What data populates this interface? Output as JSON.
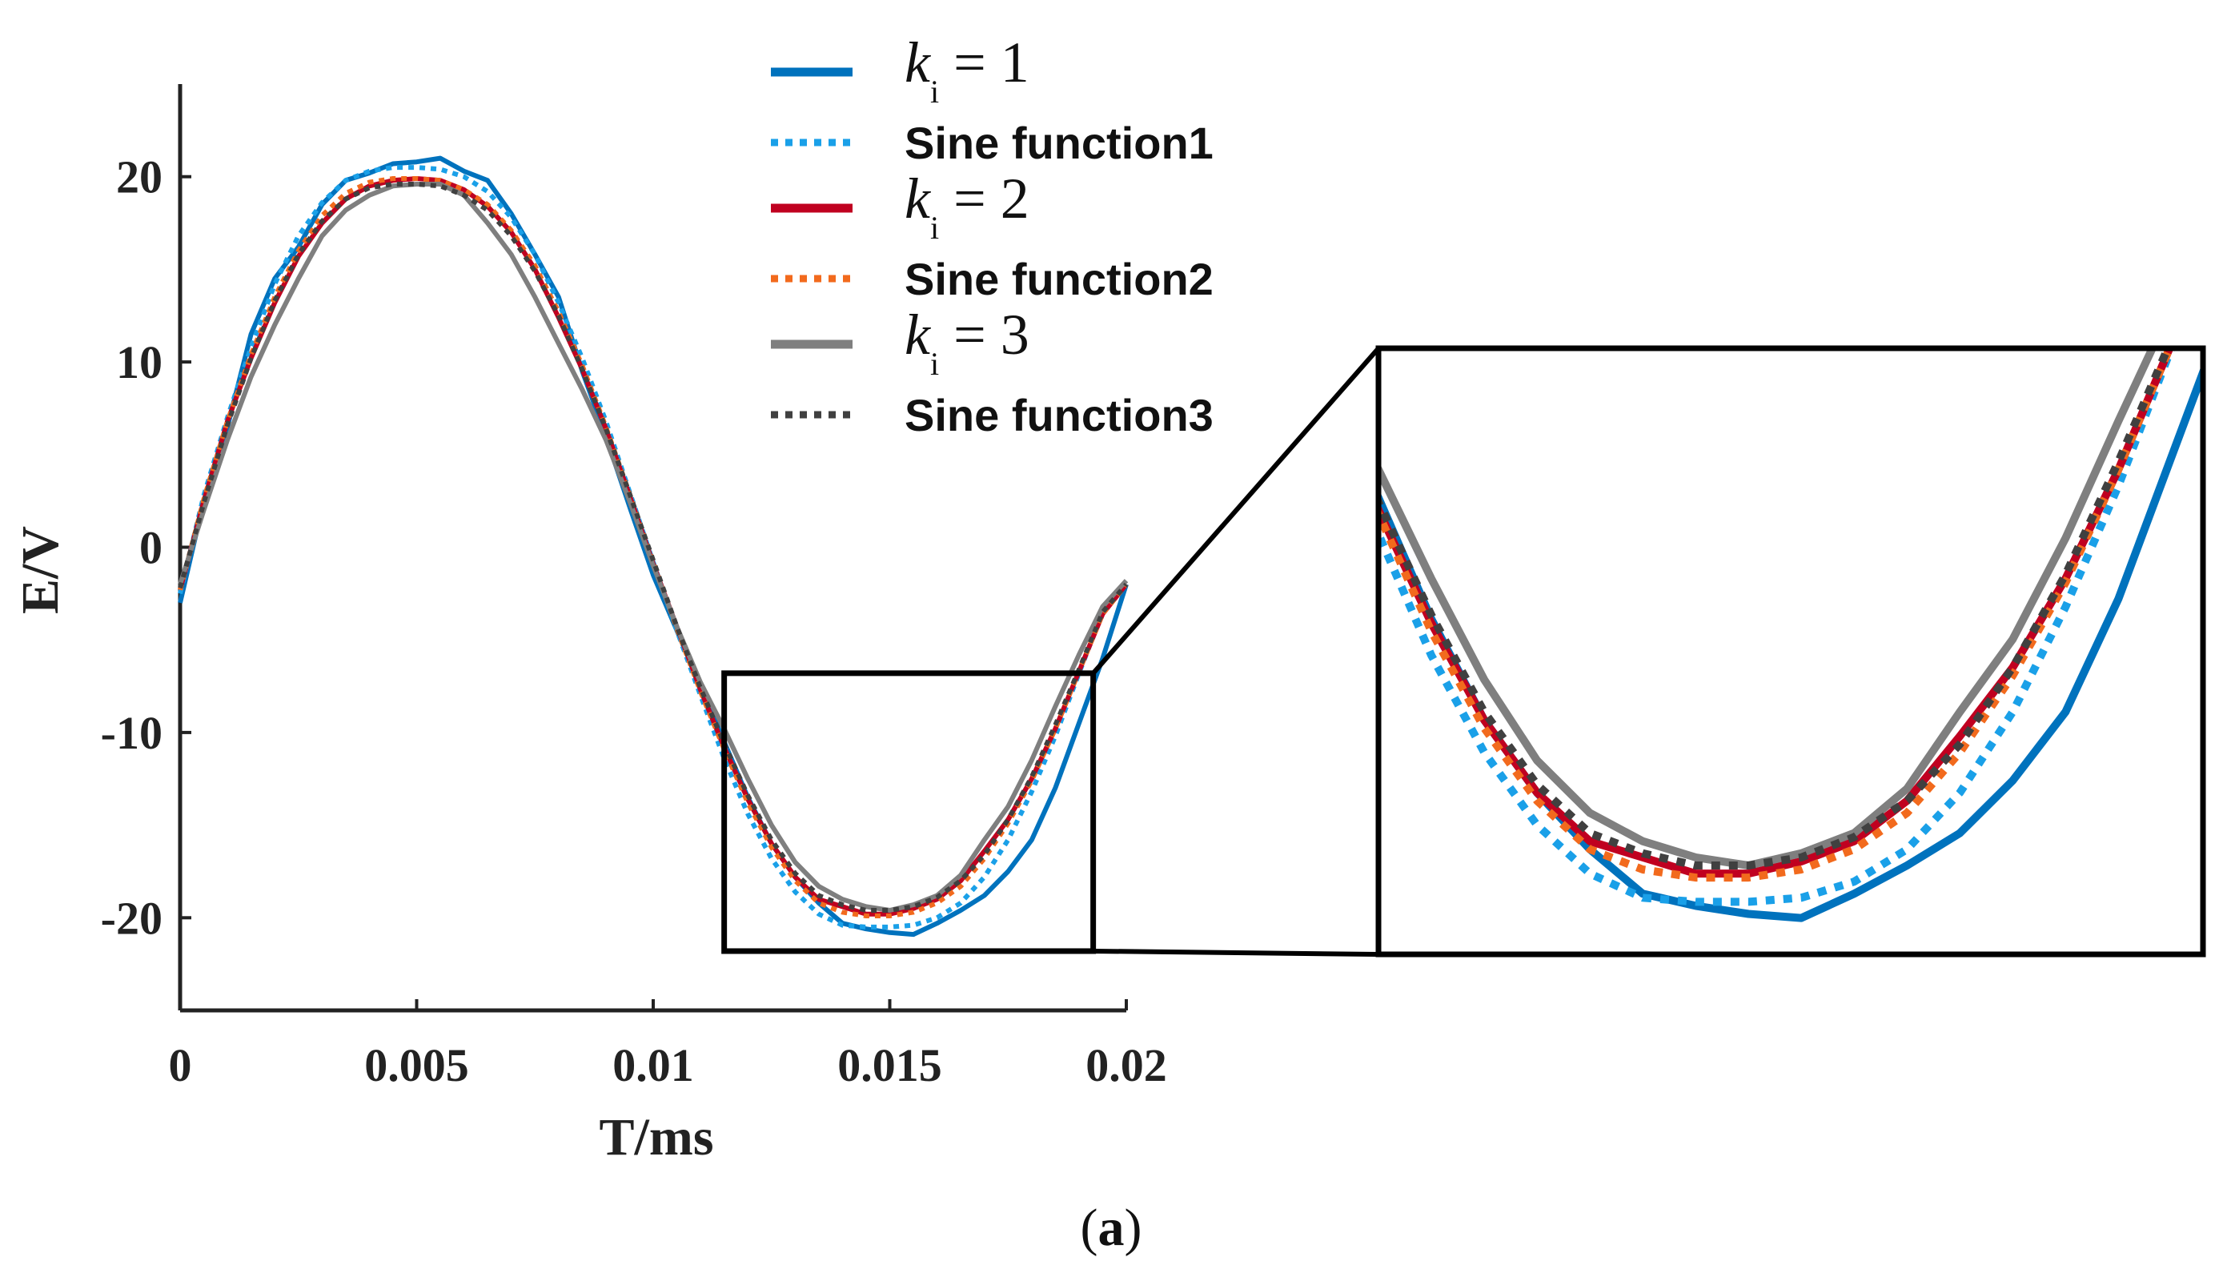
{
  "chart_data": {
    "type": "line",
    "caption_open": "(",
    "caption_letter": "a",
    "caption_close": ")",
    "xlabel": "T/ms",
    "ylabel": "E/V",
    "xlim": [
      0,
      0.02
    ],
    "ylim": [
      -25,
      25
    ],
    "xticks": [
      0,
      0.005,
      0.01,
      0.015,
      0.02
    ],
    "xtick_labels": [
      "0",
      "0.005",
      "0.01",
      "0.015",
      "0.02"
    ],
    "yticks": [
      20,
      10,
      0,
      -10,
      -20
    ],
    "ytick_labels": [
      "20",
      "10",
      "0",
      "-10",
      "-20"
    ],
    "grid": false,
    "legend_position": "top-center",
    "zoom_region": {
      "x": [
        0.0115,
        0.0193
      ],
      "y": [
        -21.8,
        -6.8
      ]
    },
    "series": [
      {
        "name": "k_i = 1",
        "legend_var": "k",
        "legend_sub": "i",
        "legend_eq": "= 1",
        "color": "#0072BD",
        "style": "solid",
        "x": [
          0,
          0.0005,
          0.001,
          0.0015,
          0.002,
          0.0025,
          0.003,
          0.0035,
          0.004,
          0.0045,
          0.005,
          0.0055,
          0.006,
          0.0065,
          0.007,
          0.0075,
          0.008,
          0.0085,
          0.009,
          0.0095,
          0.01,
          0.0105,
          0.011,
          0.0115,
          0.012,
          0.0125,
          0.013,
          0.0135,
          0.014,
          0.0145,
          0.015,
          0.0155,
          0.016,
          0.0165,
          0.017,
          0.0175,
          0.018,
          0.0185,
          0.019,
          0.0195,
          0.02
        ],
        "values": [
          -3.0,
          2.5,
          6.5,
          11.5,
          14.5,
          16.2,
          18.5,
          19.8,
          20.2,
          20.7,
          20.8,
          21.0,
          20.3,
          19.8,
          18.0,
          15.8,
          13.5,
          9.5,
          6.0,
          2.2,
          -1.5,
          -4.5,
          -7.5,
          -10.5,
          -13.5,
          -16.0,
          -17.8,
          -19.2,
          -20.3,
          -20.6,
          -20.8,
          -20.9,
          -20.3,
          -19.6,
          -18.8,
          -17.5,
          -15.8,
          -13.0,
          -9.5,
          -6.0,
          -2.0
        ]
      },
      {
        "name": "Sine function1",
        "legend_label": "Sine function1",
        "color": "#1AA0E8",
        "style": "dotted",
        "x": [
          0,
          0.0005,
          0.001,
          0.0015,
          0.002,
          0.0025,
          0.003,
          0.0035,
          0.004,
          0.0045,
          0.005,
          0.0055,
          0.006,
          0.0065,
          0.007,
          0.0075,
          0.008,
          0.0085,
          0.009,
          0.0095,
          0.01,
          0.0105,
          0.011,
          0.0115,
          0.012,
          0.0125,
          0.013,
          0.0135,
          0.014,
          0.0145,
          0.015,
          0.0155,
          0.016,
          0.0165,
          0.017,
          0.0175,
          0.018,
          0.0185,
          0.019,
          0.0195,
          0.02
        ],
        "values": [
          -2.5,
          2.8,
          7.0,
          10.8,
          14.2,
          16.8,
          18.6,
          19.8,
          20.3,
          20.5,
          20.5,
          20.4,
          20.0,
          19.2,
          17.8,
          15.8,
          13.2,
          10.2,
          6.8,
          3.0,
          -0.8,
          -4.5,
          -8.0,
          -11.4,
          -14.4,
          -16.8,
          -18.6,
          -19.8,
          -20.4,
          -20.5,
          -20.5,
          -20.4,
          -20.0,
          -19.2,
          -17.8,
          -15.8,
          -13.2,
          -10.2,
          -6.8,
          -3.5,
          -2.0
        ]
      },
      {
        "name": "k_i = 2",
        "legend_var": "k",
        "legend_sub": "i",
        "legend_eq": "= 2",
        "color": "#C00020",
        "style": "solid",
        "x": [
          0,
          0.0005,
          0.001,
          0.0015,
          0.002,
          0.0025,
          0.003,
          0.0035,
          0.004,
          0.0045,
          0.005,
          0.0055,
          0.006,
          0.0065,
          0.007,
          0.0075,
          0.008,
          0.0085,
          0.009,
          0.0095,
          0.01,
          0.0105,
          0.011,
          0.0115,
          0.012,
          0.0125,
          0.013,
          0.0135,
          0.014,
          0.0145,
          0.015,
          0.0155,
          0.016,
          0.0165,
          0.017,
          0.0175,
          0.018,
          0.0185,
          0.019,
          0.0195,
          0.02
        ],
        "values": [
          -2.3,
          2.5,
          6.8,
          10.2,
          13.2,
          15.7,
          17.5,
          18.8,
          19.5,
          19.8,
          19.9,
          19.8,
          19.3,
          18.4,
          17.0,
          15.0,
          12.4,
          9.6,
          6.4,
          2.8,
          -0.9,
          -4.3,
          -7.7,
          -10.8,
          -13.6,
          -16.0,
          -17.8,
          -19.0,
          -19.4,
          -19.8,
          -19.8,
          -19.5,
          -19.0,
          -18.0,
          -16.4,
          -14.7,
          -12.5,
          -9.8,
          -6.7,
          -3.6,
          -2.0
        ]
      },
      {
        "name": "Sine function2",
        "legend_label": "Sine function2",
        "color": "#F26A1D",
        "style": "dotted",
        "x": [
          0,
          0.0005,
          0.001,
          0.0015,
          0.002,
          0.0025,
          0.003,
          0.0035,
          0.004,
          0.0045,
          0.005,
          0.0055,
          0.006,
          0.0065,
          0.007,
          0.0075,
          0.008,
          0.0085,
          0.009,
          0.0095,
          0.01,
          0.0105,
          0.011,
          0.0115,
          0.012,
          0.0125,
          0.013,
          0.0135,
          0.014,
          0.0145,
          0.015,
          0.0155,
          0.016,
          0.0165,
          0.017,
          0.0175,
          0.018,
          0.0185,
          0.019,
          0.0195,
          0.02
        ],
        "values": [
          -2.3,
          2.6,
          6.8,
          10.4,
          13.5,
          16.0,
          17.9,
          19.1,
          19.7,
          19.9,
          19.9,
          19.8,
          19.3,
          18.5,
          17.1,
          15.2,
          12.7,
          9.8,
          6.5,
          2.9,
          -0.8,
          -4.4,
          -7.8,
          -10.9,
          -13.8,
          -16.2,
          -18.0,
          -19.2,
          -19.7,
          -19.9,
          -19.9,
          -19.7,
          -19.2,
          -18.3,
          -16.8,
          -14.9,
          -12.6,
          -9.8,
          -6.7,
          -3.6,
          -2.0
        ]
      },
      {
        "name": "k_i = 3",
        "legend_var": "k",
        "legend_sub": "i",
        "legend_eq": "= 3",
        "color": "#7F7F7F",
        "style": "solid",
        "x": [
          0,
          0.0005,
          0.001,
          0.0015,
          0.002,
          0.0025,
          0.003,
          0.0035,
          0.004,
          0.0045,
          0.005,
          0.0055,
          0.006,
          0.0065,
          0.007,
          0.0075,
          0.008,
          0.0085,
          0.009,
          0.0095,
          0.01,
          0.0105,
          0.011,
          0.0115,
          0.012,
          0.0125,
          0.013,
          0.0135,
          0.014,
          0.0145,
          0.015,
          0.0155,
          0.016,
          0.0165,
          0.017,
          0.0175,
          0.018,
          0.0185,
          0.019,
          0.0195,
          0.02
        ],
        "values": [
          -2.0,
          2.0,
          5.8,
          9.2,
          12.0,
          14.5,
          16.8,
          18.2,
          19.0,
          19.5,
          19.6,
          19.6,
          19.0,
          17.5,
          15.8,
          13.5,
          11.0,
          8.5,
          5.8,
          2.5,
          -1.0,
          -4.3,
          -7.3,
          -9.8,
          -12.5,
          -15.0,
          -17.0,
          -18.3,
          -19.0,
          -19.4,
          -19.6,
          -19.3,
          -18.8,
          -17.7,
          -15.8,
          -14.0,
          -11.5,
          -8.6,
          -5.8,
          -3.2,
          -1.8
        ]
      },
      {
        "name": "Sine function3",
        "legend_label": "Sine function3",
        "color": "#404040",
        "style": "dotted",
        "x": [
          0,
          0.0005,
          0.001,
          0.0015,
          0.002,
          0.0025,
          0.003,
          0.0035,
          0.004,
          0.0045,
          0.005,
          0.0055,
          0.006,
          0.0065,
          0.007,
          0.0075,
          0.008,
          0.0085,
          0.009,
          0.0095,
          0.01,
          0.0105,
          0.011,
          0.0115,
          0.012,
          0.0125,
          0.013,
          0.0135,
          0.014,
          0.0145,
          0.015,
          0.0155,
          0.016,
          0.0165,
          0.017,
          0.0175,
          0.018,
          0.0185,
          0.019,
          0.0195,
          0.02
        ],
        "values": [
          -2.2,
          2.4,
          6.6,
          10.2,
          13.3,
          15.8,
          17.6,
          18.8,
          19.4,
          19.6,
          19.6,
          19.5,
          19.0,
          18.2,
          16.8,
          14.9,
          12.5,
          9.6,
          6.4,
          2.9,
          -0.7,
          -4.3,
          -7.6,
          -10.6,
          -13.4,
          -15.8,
          -17.6,
          -18.8,
          -19.3,
          -19.6,
          -19.6,
          -19.4,
          -18.9,
          -18.0,
          -16.6,
          -14.7,
          -12.4,
          -9.6,
          -6.6,
          -3.5,
          -2.0
        ]
      }
    ]
  }
}
